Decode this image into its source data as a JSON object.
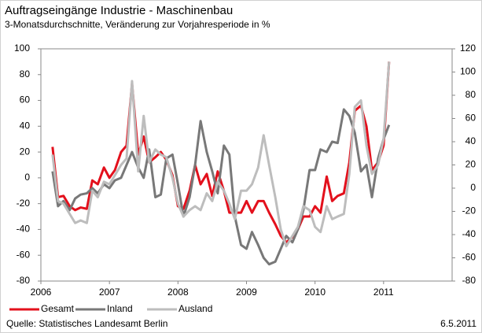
{
  "chart_data": {
    "type": "line",
    "title": "Auftragseingänge Industrie - Maschinenbau",
    "subtitle": "3-Monatsdurchschnitte, Veränderung zur Vorjahresperiode in %",
    "source": "Quelle: Statistisches Landesamt Berlin",
    "date": "6.5.2011",
    "xlim": [
      2006,
      2012
    ],
    "xticks": [
      2006,
      2007,
      2008,
      2009,
      2010,
      2011
    ],
    "ylim": [
      -80,
      100
    ],
    "yticks": [
      -80,
      -60,
      -40,
      -20,
      0,
      20,
      40,
      60,
      80,
      100
    ],
    "y2lim": [
      -80,
      120
    ],
    "y2ticks": [
      -80,
      -60,
      -40,
      -20,
      0,
      20,
      40,
      60,
      80,
      100,
      120
    ],
    "x": [
      2006.17,
      2006.25,
      2006.33,
      2006.42,
      2006.5,
      2006.58,
      2006.67,
      2006.75,
      2006.83,
      2006.92,
      2007,
      2007.08,
      2007.17,
      2007.25,
      2007.33,
      2007.42,
      2007.5,
      2007.58,
      2007.67,
      2007.75,
      2007.83,
      2007.92,
      2008,
      2008.08,
      2008.17,
      2008.25,
      2008.33,
      2008.42,
      2008.5,
      2008.58,
      2008.67,
      2008.75,
      2008.83,
      2008.92,
      2009,
      2009.08,
      2009.17,
      2009.25,
      2009.33,
      2009.42,
      2009.5,
      2009.58,
      2009.67,
      2009.75,
      2009.83,
      2009.92,
      2010,
      2010.08,
      2010.17,
      2010.25,
      2010.33,
      2010.42,
      2010.5,
      2010.58,
      2010.67,
      2010.75,
      2010.83,
      2010.92,
      2011,
      2011.08
    ],
    "series": [
      {
        "name": "Gesamt",
        "color": "#e3101c",
        "values": [
          24,
          -15,
          -14,
          -22,
          -25,
          -23,
          -24,
          -2,
          -5,
          8,
          0,
          6,
          20,
          25,
          73,
          18,
          32,
          12,
          16,
          20,
          14,
          2,
          -22,
          -24,
          -10,
          10,
          -5,
          3,
          -14,
          5,
          -10,
          -27,
          -27,
          -27,
          -18,
          -27,
          -18,
          -18,
          -27,
          -36,
          -45,
          -50,
          -46,
          -40,
          -30,
          -30,
          -22,
          -27,
          1,
          -18,
          -14,
          -12,
          12,
          52,
          56,
          40,
          6,
          12,
          25,
          90
        ]
      },
      {
        "name": "Inland",
        "color": "#787878",
        "values": [
          5,
          -22,
          -18,
          -25,
          -16,
          -13,
          -12,
          -8,
          -12,
          -5,
          -8,
          -2,
          0,
          10,
          20,
          8,
          0,
          22,
          -15,
          -13,
          15,
          18,
          -5,
          -30,
          -15,
          10,
          44,
          20,
          5,
          -12,
          25,
          18,
          -30,
          -52,
          -55,
          -42,
          -52,
          -62,
          -67,
          -65,
          -55,
          -45,
          -50,
          -40,
          -25,
          6,
          6,
          22,
          20,
          28,
          27,
          53,
          48,
          35,
          5,
          10,
          -15,
          15,
          30,
          41
        ]
      },
      {
        "name": "Ausland",
        "color": "#bdbdbd",
        "values": [
          18,
          -18,
          -20,
          -28,
          -35,
          -33,
          -35,
          -10,
          -15,
          -3,
          -5,
          2,
          10,
          15,
          75,
          5,
          48,
          12,
          22,
          18,
          16,
          0,
          -20,
          -30,
          -25,
          -22,
          -25,
          -12,
          -18,
          -3,
          -10,
          -20,
          -32,
          -10,
          -10,
          -5,
          8,
          33,
          10,
          -15,
          -40,
          -53,
          -45,
          -38,
          -22,
          -25,
          -38,
          -42,
          -22,
          -32,
          -30,
          -28,
          3,
          55,
          60,
          25,
          3,
          10,
          30,
          90
        ]
      }
    ]
  }
}
